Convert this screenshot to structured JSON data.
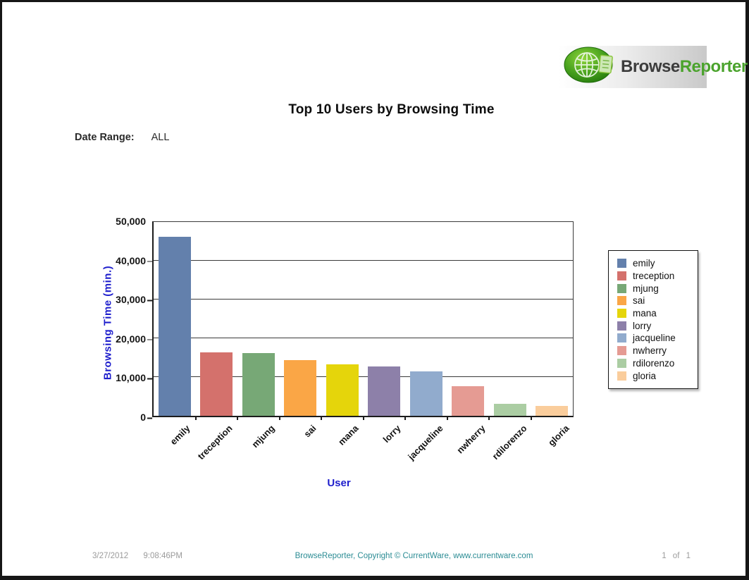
{
  "header": {
    "logo_part1": "Browse",
    "logo_part2": "Reporter",
    "title": "Top 10 Users by Browsing Time",
    "date_range_label": "Date Range:",
    "date_range_value": "ALL"
  },
  "chart_data": {
    "type": "bar",
    "title": "Top 10 Users by Browsing Time",
    "xlabel": "User",
    "ylabel": "Browsing Time (min.)",
    "categories": [
      "emily",
      "treception",
      "mjung",
      "sai",
      "mana",
      "lorry",
      "jacqueline",
      "nwherry",
      "rdilorenzo",
      "gloria"
    ],
    "values": [
      46100,
      16300,
      16100,
      14400,
      13200,
      12700,
      11400,
      7600,
      3100,
      2600
    ],
    "colors": [
      "#6380AC",
      "#D4716C",
      "#77A876",
      "#FAA646",
      "#E5D50B",
      "#8D80A9",
      "#91ABCD",
      "#E59B93",
      "#ABCDA3",
      "#FACD9C"
    ],
    "ylim": [
      0,
      50000
    ],
    "ytick_values": [
      0,
      10000,
      20000,
      30000,
      40000,
      50000
    ],
    "ytick_labels": [
      "0",
      "10,000",
      "20,000",
      "30,000",
      "40,000",
      "50,000"
    ],
    "grid": true,
    "legend_position": "right",
    "legend_entries": [
      "emily",
      "treception",
      "mjung",
      "sai",
      "mana",
      "lorry",
      "jacqueline",
      "nwherry",
      "rdilorenzo",
      "gloria"
    ]
  },
  "footer": {
    "date": "3/27/2012",
    "time": "9:08:46PM",
    "copyright": "BrowseReporter, Copyright © CurrentWare, www.currentware.com",
    "page_current": "1",
    "page_of": "of",
    "page_total": "1"
  },
  "colors": {
    "brand_green": "#4ba32d",
    "axis_title_blue": "#1e1ecc",
    "footer_teal": "#2b8c94"
  }
}
